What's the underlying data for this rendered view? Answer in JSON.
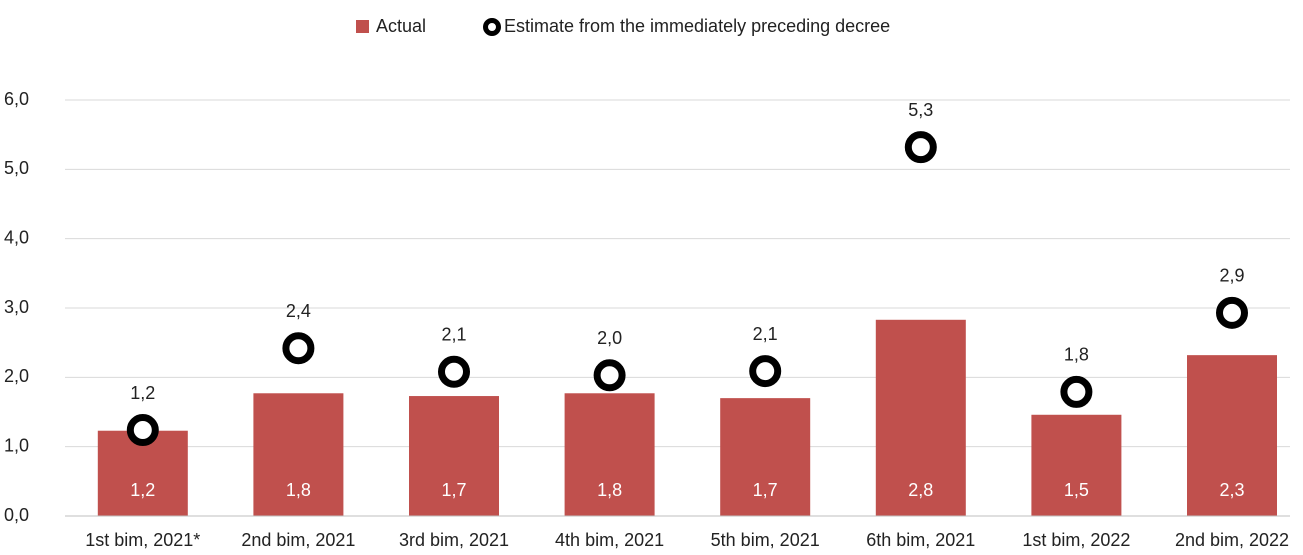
{
  "chart_data": {
    "type": "bar",
    "categories": [
      "1st bim, 2021*",
      "2nd bim, 2021",
      "3rd bim, 2021",
      "4th bim, 2021",
      "5th bim, 2021",
      "6th bim, 2021",
      "1st bim, 2022",
      "2nd bim, 2022"
    ],
    "series": [
      {
        "name": "Actual",
        "type": "bar",
        "color": "#c0504d",
        "values": [
          1.23,
          1.77,
          1.73,
          1.77,
          1.7,
          2.83,
          1.46,
          2.32
        ],
        "value_labels": [
          "1,2",
          "1,8",
          "1,7",
          "1,8",
          "1,7",
          "2,8",
          "1,5",
          "2,3"
        ]
      },
      {
        "name": "Estimate from the immediately preceding decree",
        "type": "marker",
        "color": "#000000",
        "values": [
          1.24,
          2.42,
          2.08,
          2.03,
          2.09,
          5.32,
          1.79,
          2.93
        ],
        "value_labels": [
          "1,2",
          "2,4",
          "2,1",
          "2,0",
          "2,1",
          "5,3",
          "1,8",
          "2,9"
        ]
      }
    ],
    "ylim": [
      0,
      6
    ],
    "yticks": [
      {
        "value": 0,
        "label": "0,0"
      },
      {
        "value": 1,
        "label": "1,0"
      },
      {
        "value": 2,
        "label": "2,0"
      },
      {
        "value": 3,
        "label": "3,0"
      },
      {
        "value": 4,
        "label": "4,0"
      },
      {
        "value": 5,
        "label": "5,0"
      },
      {
        "value": 6,
        "label": "6,0"
      }
    ],
    "grid": true,
    "legend": "top"
  }
}
